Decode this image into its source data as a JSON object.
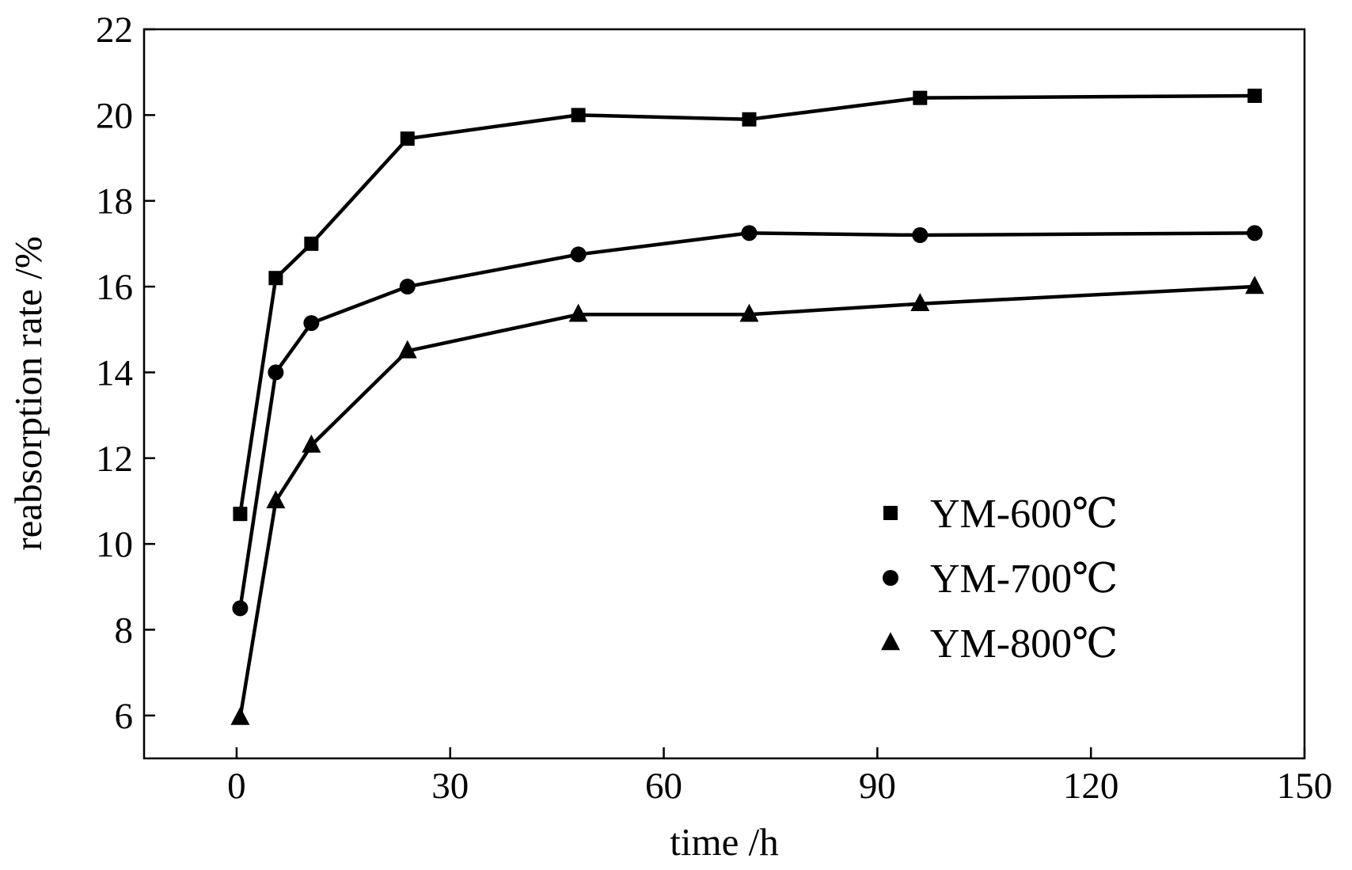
{
  "chart_data": {
    "type": "line",
    "xlabel": "time /h",
    "ylabel": "reabsorption rate /%",
    "xlim": [
      -13,
      150
    ],
    "ylim": [
      5,
      22
    ],
    "x_ticks": [
      0,
      30,
      60,
      90,
      120,
      150
    ],
    "x_tick_labels": [
      "0",
      "30",
      "60",
      "90",
      "120",
      "150"
    ],
    "y_ticks": [
      6,
      8,
      10,
      12,
      14,
      16,
      18,
      20,
      22
    ],
    "y_tick_labels": [
      "6",
      "8",
      "10",
      "12",
      "14",
      "16",
      "18",
      "20",
      "22"
    ],
    "grid": false,
    "legend_position": "bottom-right",
    "colors": {
      "line": "#000000",
      "marker": "#000000",
      "axis": "#000000",
      "background": "#ffffff"
    },
    "x": [
      0.5,
      5.5,
      10.5,
      24,
      48,
      72,
      96,
      143
    ],
    "series": [
      {
        "name": "YM-600℃",
        "marker": "square",
        "values": [
          10.7,
          16.2,
          17.0,
          19.45,
          20.0,
          19.9,
          20.4,
          20.45
        ]
      },
      {
        "name": "YM-700℃",
        "marker": "circle",
        "values": [
          8.5,
          14.0,
          15.15,
          16.0,
          16.75,
          17.25,
          17.2,
          17.25
        ]
      },
      {
        "name": "YM-800℃",
        "marker": "triangle",
        "values": [
          5.95,
          11.0,
          12.3,
          14.5,
          15.35,
          15.35,
          15.6,
          16.0
        ]
      }
    ]
  }
}
